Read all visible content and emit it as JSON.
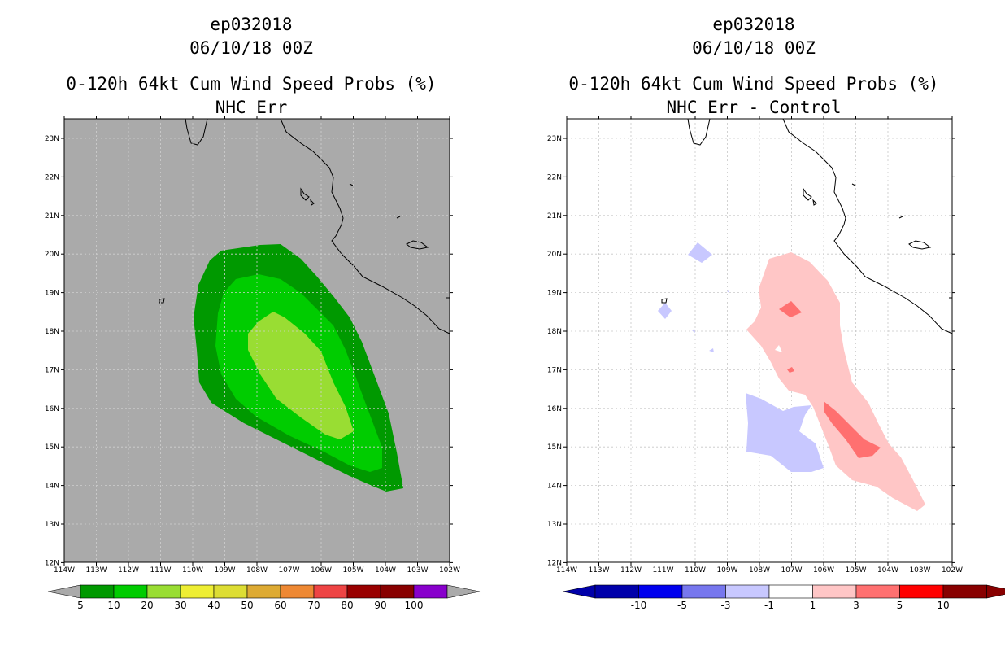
{
  "panels": [
    {
      "storm_id": "ep032018",
      "datetime": "06/10/18 00Z",
      "product": "0-120h 64kt Cum Wind Speed Probs (%)",
      "subtitle": "NHC Err",
      "lat_labels": [
        "23N",
        "22N",
        "21N",
        "20N",
        "19N",
        "18N",
        "17N",
        "16N",
        "15N",
        "14N",
        "13N",
        "12N"
      ],
      "lon_labels": [
        "114W",
        "113W",
        "112W",
        "111W",
        "110W",
        "109W",
        "108W",
        "107W",
        "106W",
        "105W",
        "104W",
        "103W",
        "102W"
      ],
      "colorbar_labels": [
        "5",
        "10",
        "20",
        "30",
        "40",
        "50",
        "60",
        "70",
        "80",
        "90",
        "100"
      ],
      "colorbar_colors": [
        "#009900",
        "#00cc00",
        "#99dd33",
        "#eeee33",
        "#dddd33",
        "#ddaa33",
        "#ee8833",
        "#ee4444",
        "#990000",
        "#880000",
        "#8800cc"
      ]
    },
    {
      "storm_id": "ep032018",
      "datetime": "06/10/18 00Z",
      "product": "0-120h 64kt Cum Wind Speed Probs (%)",
      "subtitle": "NHC Err - Control",
      "lat_labels": [
        "23N",
        "22N",
        "21N",
        "20N",
        "19N",
        "18N",
        "17N",
        "16N",
        "15N",
        "14N",
        "13N",
        "12N"
      ],
      "lon_labels": [
        "114W",
        "113W",
        "112W",
        "111W",
        "110W",
        "109W",
        "108W",
        "107W",
        "106W",
        "105W",
        "104W",
        "103W",
        "102W"
      ],
      "colorbar_labels": [
        "-10",
        "-5",
        "-3",
        "-1",
        "1",
        "3",
        "5",
        "10"
      ],
      "colorbar_colors": [
        "#0000aa",
        "#0000ee",
        "#7777ee",
        "#c8c8ff",
        "#ffffff",
        "#ffc6c6",
        "#ff7070",
        "#ff0000",
        "#880000"
      ]
    }
  ],
  "colors": {
    "land_background": "#aaaaaa",
    "prob_5": "#009900",
    "prob_10": "#00cc00",
    "prob_20": "#99dd33",
    "diff_neg_1": "#c8c8ff",
    "diff_pos_1": "#ffc6c6",
    "diff_pos_3": "#ff7070"
  }
}
